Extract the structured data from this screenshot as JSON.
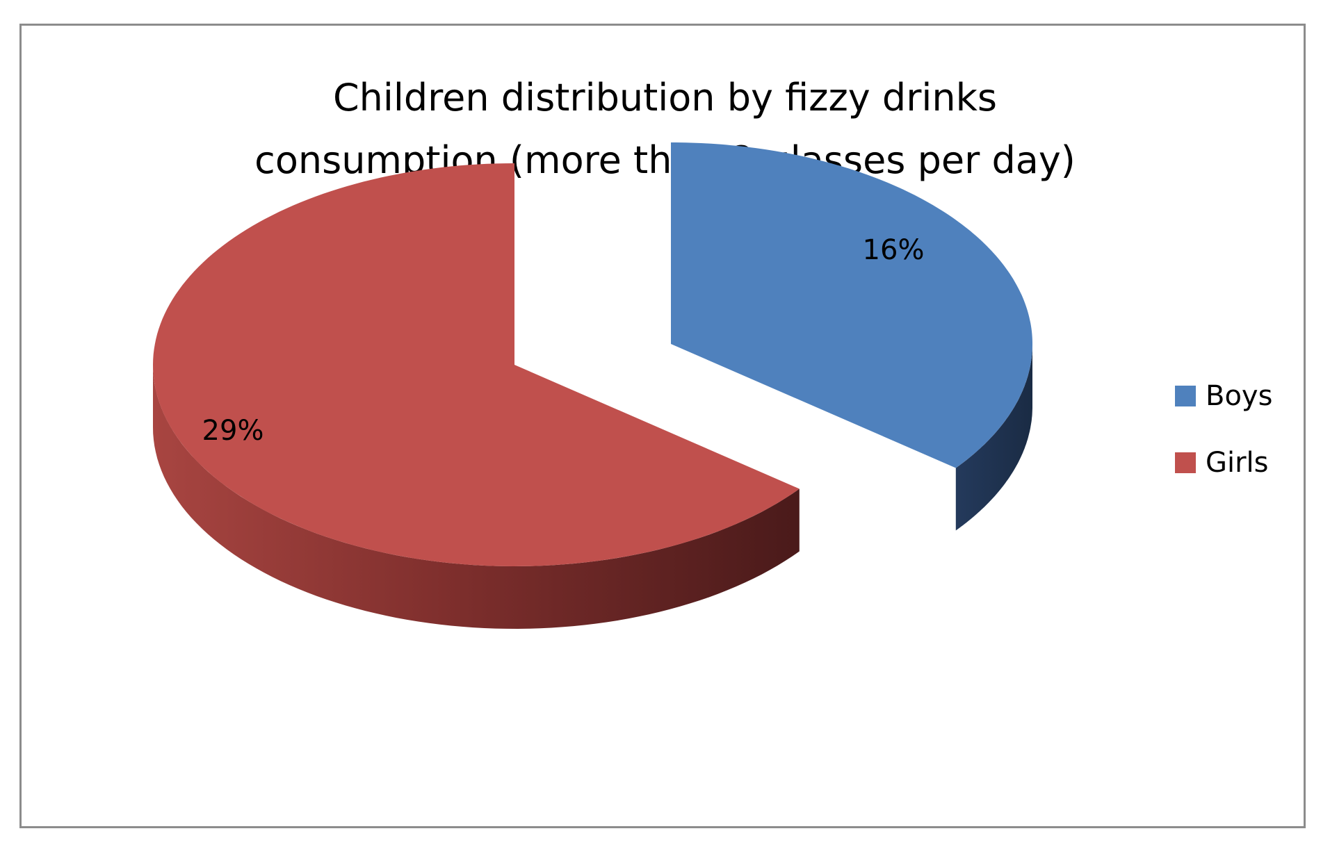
{
  "chart_data": {
    "type": "pie",
    "title": "Children distribution by fizzy drinks consumption (more than 2 glasses per day)",
    "title_lines": [
      "Children distribution by fizzy drinks",
      "consumption (more than 2 glasses per day)"
    ],
    "categories": [
      "Boys",
      "Girls"
    ],
    "values": [
      16,
      29
    ],
    "data_labels": [
      "16%",
      "29%"
    ],
    "colors": {
      "Boys": "#4f81bd",
      "Girls": "#c0504d"
    },
    "side_colors": {
      "Boys": "#1f3350",
      "Girls": "#5a1f1f"
    },
    "legend_position": "right",
    "style": "3d-exploded"
  }
}
